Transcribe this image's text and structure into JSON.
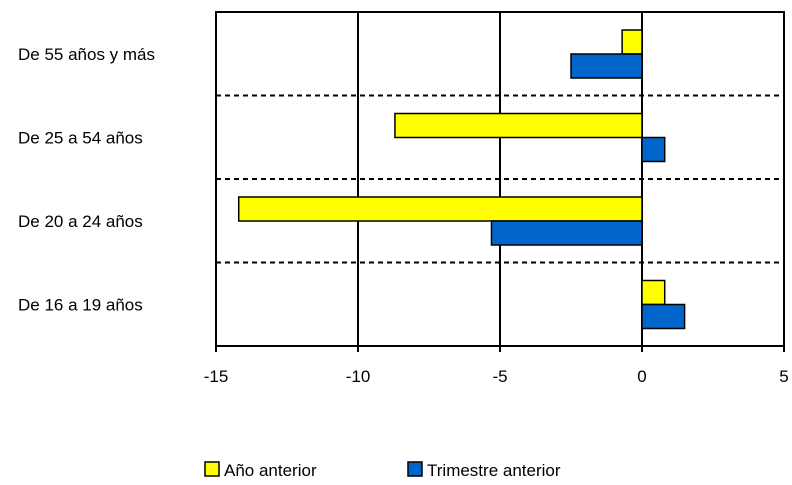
{
  "chart_data": {
    "type": "bar",
    "orientation": "horizontal",
    "title": "",
    "xlabel": "",
    "ylabel": "",
    "categories": [
      "De 55 años y más",
      "De 25 a 54 años",
      "De 20 a 24 años",
      "De 16 a 19 años"
    ],
    "series": [
      {
        "name": "Año anterior",
        "color": "#ffff00",
        "values": [
          -0.7,
          -8.7,
          -14.2,
          0.8
        ]
      },
      {
        "name": "Trimestre anterior",
        "color": "#0066cc",
        "values": [
          -2.5,
          0.8,
          -5.3,
          1.5
        ]
      }
    ],
    "xlim": [
      -15,
      5
    ],
    "xticks": [
      "-15",
      "-10",
      "-5",
      "0",
      "5"
    ],
    "xtick_values": [
      -15,
      -10,
      -5,
      0,
      5
    ],
    "grid": "vertical solid lines at ticks; dashed separators between categories",
    "legend": "bottom-center"
  }
}
